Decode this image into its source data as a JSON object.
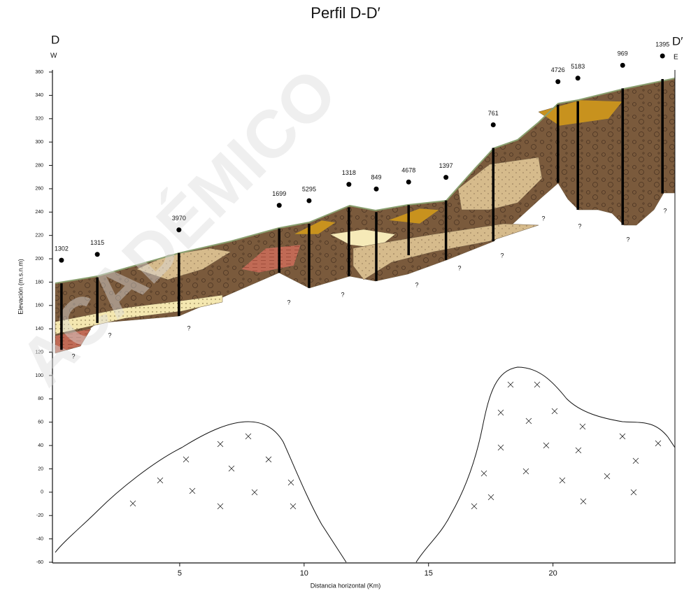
{
  "chart_data": {
    "type": "profile",
    "title": "Perfil D-D′",
    "x_label": "Distancia horizontal (Km)",
    "y_label": "Elevación (m.s.n.m)",
    "left_end": "D",
    "left_dir": "W",
    "right_end": "D′",
    "right_dir": "E",
    "watermark": "ACADÉMICO",
    "xlim": [
      0,
      24.9
    ],
    "xticks": [
      5,
      10,
      15,
      20
    ],
    "ylim": [
      -60,
      360
    ],
    "yticks": [
      -60,
      -40,
      -20,
      0,
      20,
      40,
      60,
      80,
      100,
      120,
      140,
      160,
      180,
      200,
      220,
      240,
      260,
      280,
      300,
      320,
      340,
      360
    ],
    "wells": [
      {
        "name": "1302",
        "x": 0.25,
        "top": 179,
        "bottom": 122
      },
      {
        "name": "1315",
        "x": 1.69,
        "top": 184,
        "bottom": 145
      },
      {
        "name": "3970",
        "x": 4.97,
        "top": 205,
        "bottom": 151
      },
      {
        "name": "1699",
        "x": 9.0,
        "top": 226,
        "bottom": 188
      },
      {
        "name": "5295",
        "x": 10.2,
        "top": 230,
        "bottom": 175
      },
      {
        "name": "1318",
        "x": 11.8,
        "top": 244,
        "bottom": 185
      },
      {
        "name": "849",
        "x": 12.9,
        "top": 240,
        "bottom": 181
      },
      {
        "name": "4678",
        "x": 14.2,
        "top": 246,
        "bottom": 203
      },
      {
        "name": "1397",
        "x": 15.7,
        "top": 250,
        "bottom": 199
      },
      {
        "name": "761",
        "x": 17.6,
        "top": 295,
        "bottom": 215
      },
      {
        "name": "4726",
        "x": 20.2,
        "top": 332,
        "bottom": 265
      },
      {
        "name": "5183",
        "x": 21.0,
        "top": 335,
        "bottom": 242
      },
      {
        "name": "969",
        "x": 22.8,
        "top": 346,
        "bottom": 229
      },
      {
        "name": "1395",
        "x": 24.4,
        "top": 354,
        "bottom": 256
      }
    ],
    "question_marks": [
      "?",
      "?",
      "?",
      "?",
      "?",
      "?",
      "?",
      "?",
      "?",
      "?",
      "?",
      "?"
    ]
  }
}
